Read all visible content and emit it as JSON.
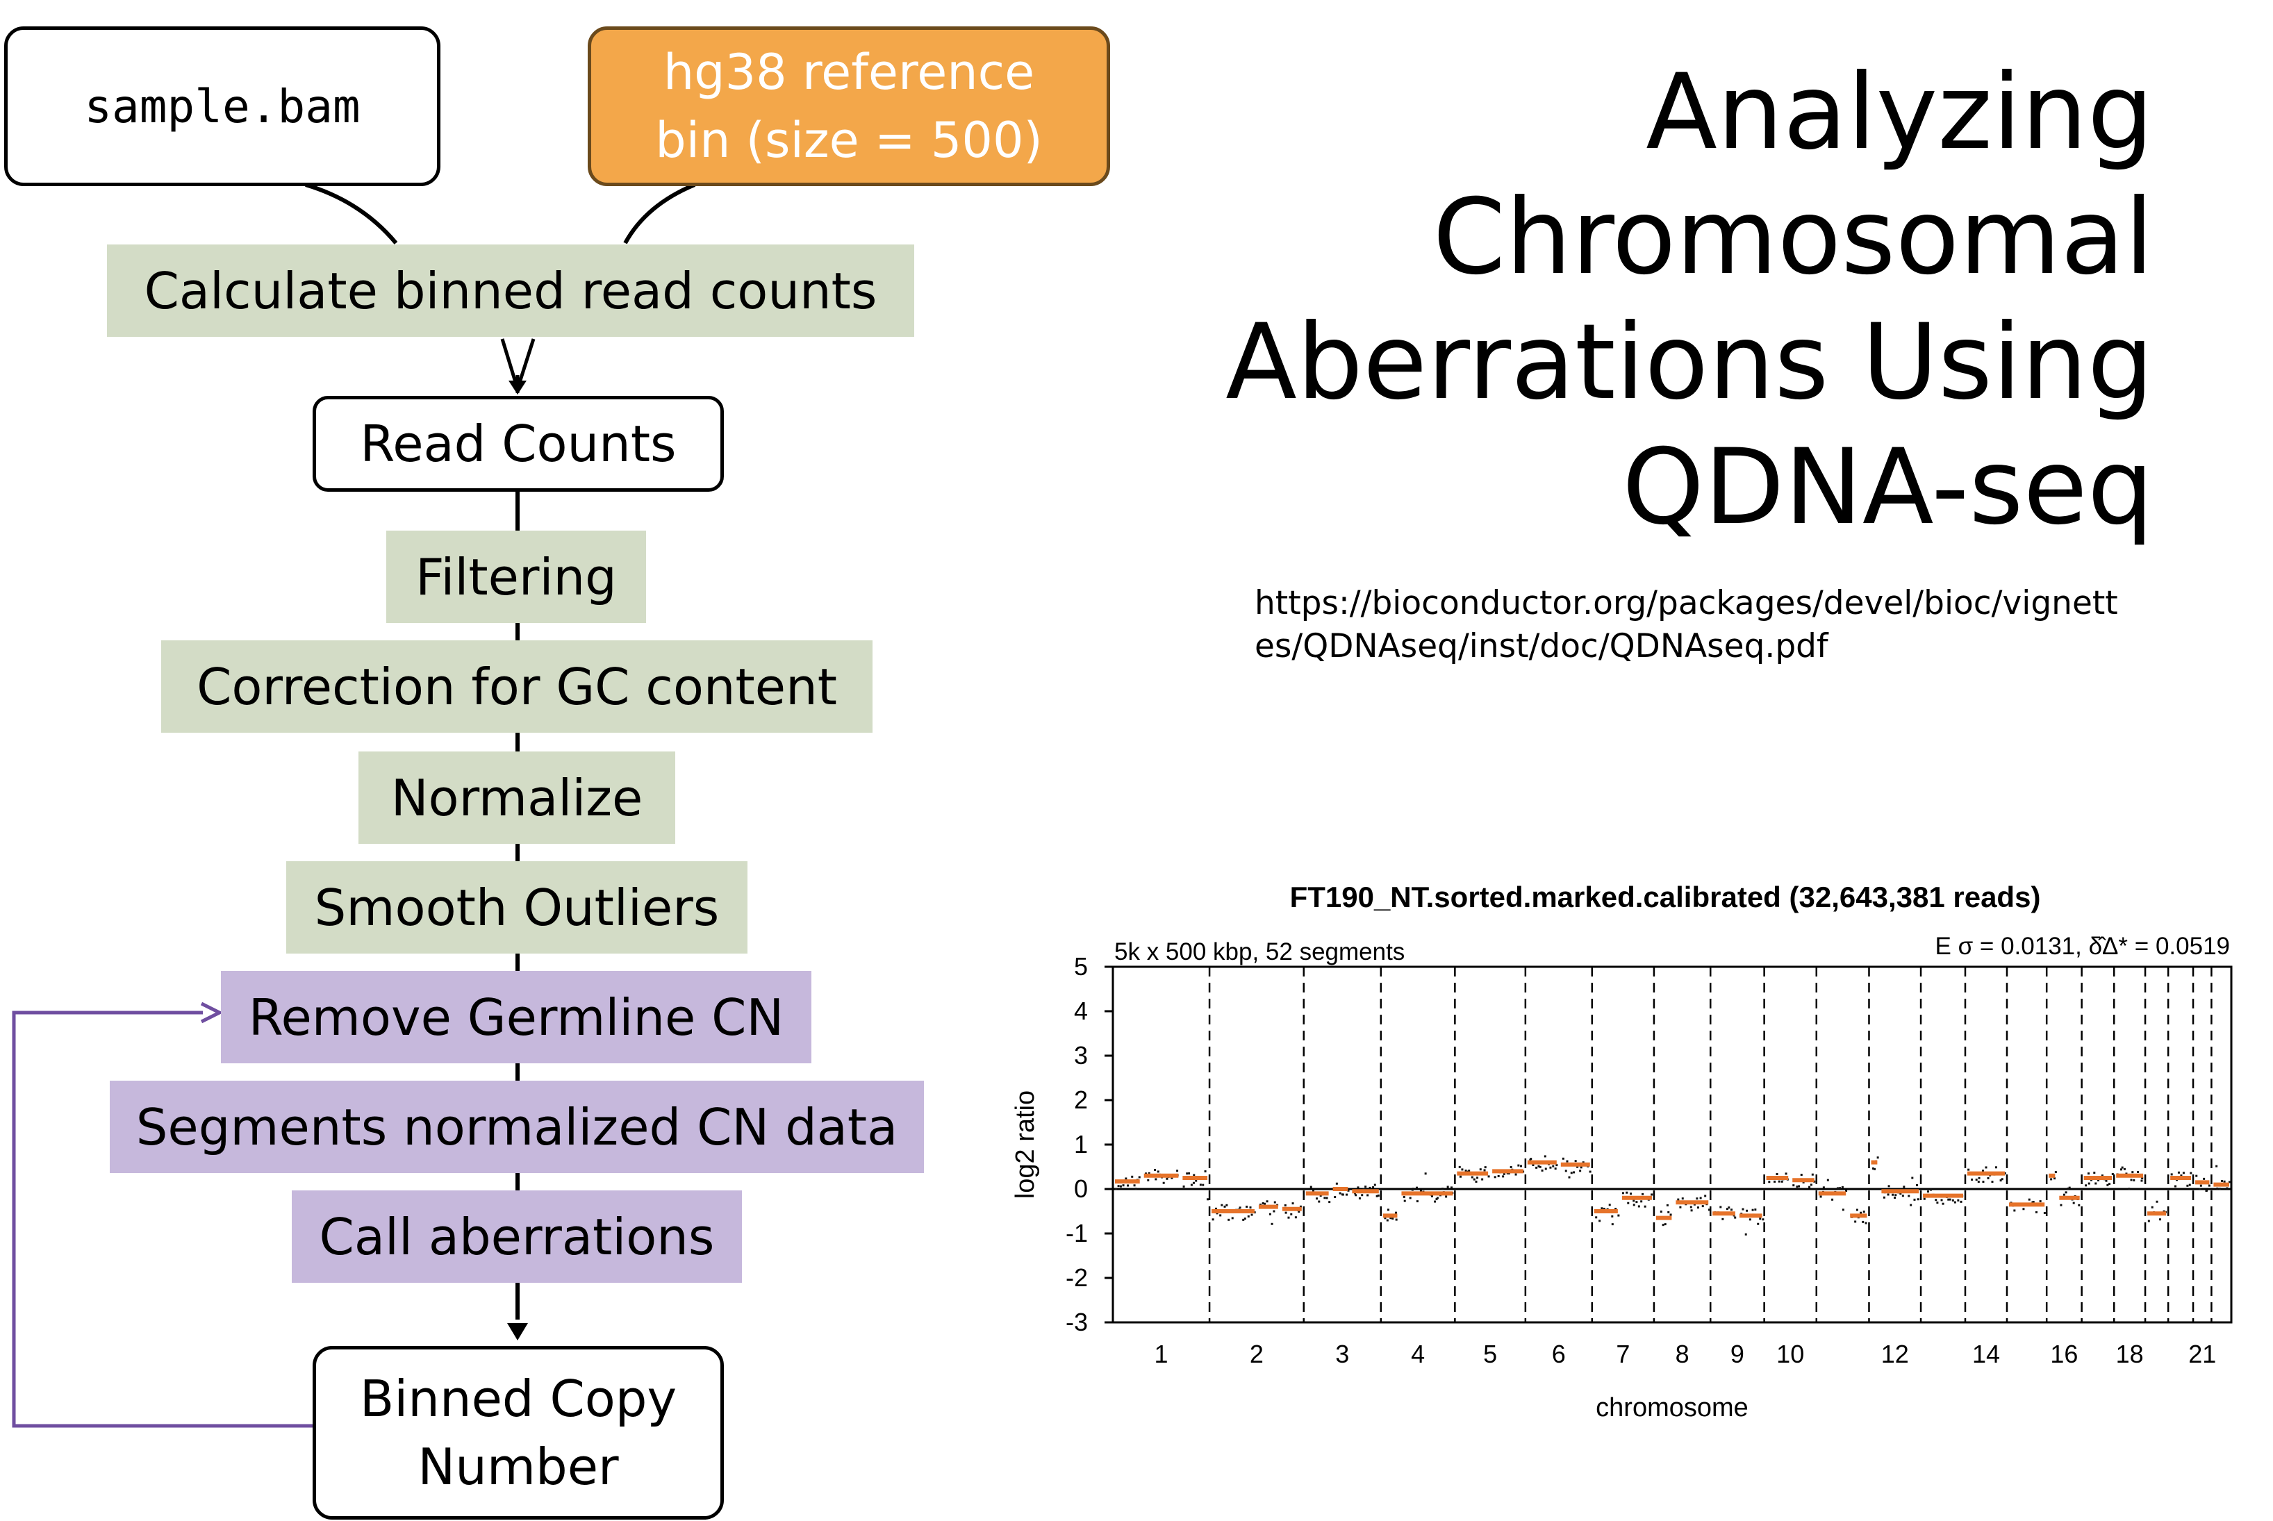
{
  "inputs": {
    "bam_label": "sample.bam",
    "reference_line1": "hg38 reference",
    "reference_line2": "bin (size = 500)"
  },
  "steps": {
    "calc": "Calculate binned read counts",
    "read_counts": "Read Counts",
    "filtering": "Filtering",
    "gc": "Correction for GC content",
    "normalize": "Normalize",
    "smooth": "Smooth Outliers",
    "germline": "Remove Germline CN",
    "segments": "Segments normalized CN data",
    "call": "Call aberrations",
    "binned_line1": "Binned Copy",
    "binned_line2": "Number"
  },
  "title": {
    "line1": "Analyzing",
    "line2": "Chromosomal",
    "line3": "Aberrations Using",
    "line4": "QDNA-seq"
  },
  "url": {
    "line1": "https://bioconductor.org/packages/devel/bioc/vignett",
    "line2": "es/QDNAseq/inst/doc/QDNAseq.pdf"
  },
  "colors": {
    "green_box": "#d3dcc6",
    "purple_box": "#c6b8dc",
    "orange_box": "#f3a74a",
    "feedback_arrow": "#6f4ea0",
    "segment": "#e6732a",
    "points": "#111111"
  },
  "chart_data": {
    "type": "scatter",
    "title": "FT190_NT.sorted.marked.calibrated (32,643,381 reads)",
    "subtitle_left": "5k x 500 kbp, 52 segments",
    "subtitle_right": "E σ = 0.0131, δ̂Δ* = 0.0519",
    "xlabel": "chromosome",
    "ylabel": "log2 ratio",
    "ylim": [
      -3,
      5
    ],
    "yticks": [
      "5",
      "4",
      "3",
      "2",
      "1",
      "0",
      "-1",
      "-2",
      "-3"
    ],
    "grid": false,
    "chromosomes": [
      {
        "chr": "1",
        "label": "1",
        "length": 248,
        "segments": [
          [
            0,
            0.17
          ],
          [
            0.3,
            0.3
          ],
          [
            0.7,
            0.25
          ]
        ]
      },
      {
        "chr": "2",
        "label": "2",
        "length": 242,
        "segments": [
          [
            0,
            -0.5
          ],
          [
            0.5,
            -0.4
          ],
          [
            0.75,
            -0.45
          ]
        ]
      },
      {
        "chr": "3",
        "label": "3",
        "length": 198,
        "segments": [
          [
            0,
            -0.1
          ],
          [
            0.35,
            0.0
          ],
          [
            0.6,
            -0.05
          ]
        ]
      },
      {
        "chr": "4",
        "label": "4",
        "length": 190,
        "segments": [
          [
            0,
            -0.6
          ],
          [
            0.25,
            -0.1
          ]
        ]
      },
      {
        "chr": "5",
        "label": "5",
        "length": 181,
        "segments": [
          [
            0,
            0.35
          ],
          [
            0.5,
            0.4
          ]
        ]
      },
      {
        "chr": "6",
        "label": "6",
        "length": 171,
        "segments": [
          [
            0,
            0.6
          ],
          [
            0.5,
            0.55
          ]
        ]
      },
      {
        "chr": "7",
        "label": "7",
        "length": 159,
        "segments": [
          [
            0,
            -0.5
          ],
          [
            0.45,
            -0.2
          ]
        ]
      },
      {
        "chr": "8",
        "label": "8",
        "length": 145,
        "segments": [
          [
            0,
            -0.65
          ],
          [
            0.35,
            -0.3
          ]
        ]
      },
      {
        "chr": "9",
        "label": "9",
        "length": 138,
        "segments": [
          [
            0,
            -0.55
          ],
          [
            0.5,
            -0.6
          ]
        ]
      },
      {
        "chr": "10",
        "label": "10",
        "length": 134,
        "segments": [
          [
            0,
            0.25
          ],
          [
            0.5,
            0.2
          ]
        ]
      },
      {
        "chr": "11",
        "label": "",
        "length": 135,
        "segments": [
          [
            0,
            -0.1
          ],
          [
            0.6,
            -0.6
          ]
        ]
      },
      {
        "chr": "12",
        "label": "12",
        "length": 133,
        "segments": [
          [
            0,
            0.6
          ],
          [
            0.2,
            -0.05
          ]
        ]
      },
      {
        "chr": "13",
        "label": "",
        "length": 114,
        "segments": [
          [
            0,
            -0.15
          ]
        ]
      },
      {
        "chr": "14",
        "label": "14",
        "length": 107,
        "segments": [
          [
            0,
            0.35
          ]
        ]
      },
      {
        "chr": "15",
        "label": "",
        "length": 102,
        "segments": [
          [
            0,
            -0.35
          ]
        ]
      },
      {
        "chr": "16",
        "label": "16",
        "length": 90,
        "segments": [
          [
            0,
            0.3
          ],
          [
            0.3,
            -0.2
          ]
        ]
      },
      {
        "chr": "17",
        "label": "",
        "length": 83,
        "segments": [
          [
            0,
            0.25
          ]
        ]
      },
      {
        "chr": "18",
        "label": "18",
        "length": 80,
        "segments": [
          [
            0,
            0.3
          ]
        ]
      },
      {
        "chr": "19",
        "label": "",
        "length": 59,
        "segments": [
          [
            0,
            -0.55
          ]
        ]
      },
      {
        "chr": "20",
        "label": "",
        "length": 64,
        "segments": [
          [
            0,
            0.25
          ]
        ]
      },
      {
        "chr": "21",
        "label": "21",
        "length": 47,
        "segments": [
          [
            0,
            0.15
          ]
        ]
      },
      {
        "chr": "22",
        "label": "",
        "length": 51,
        "segments": [
          [
            0,
            0.1
          ]
        ]
      }
    ]
  }
}
